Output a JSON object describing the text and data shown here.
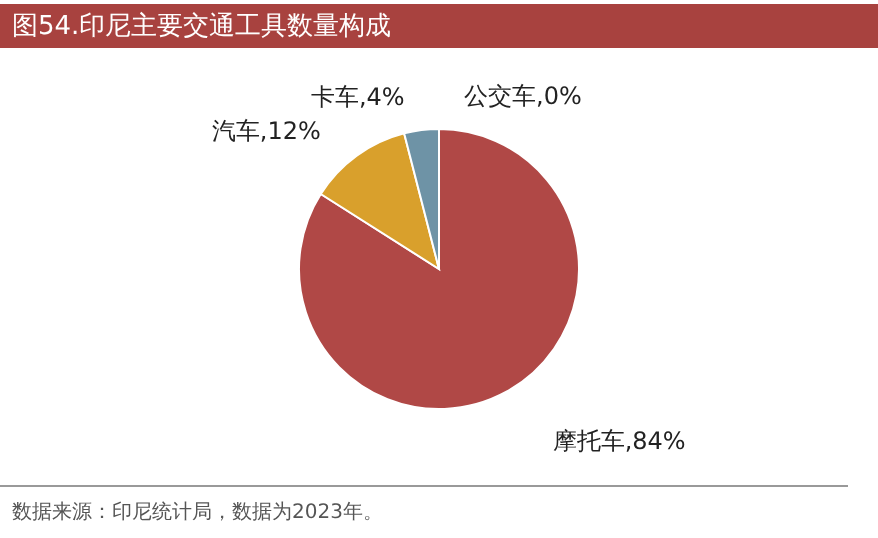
{
  "chart_data": {
    "type": "pie",
    "title": "图54.印尼主要交通工具数量构成",
    "categories": [
      "摩托车",
      "汽车",
      "卡车",
      "公交车"
    ],
    "values": [
      84,
      12,
      4,
      0
    ],
    "colors": [
      "#b04846",
      "#d9a02c",
      "#6e93a6",
      "#8aa8c0"
    ],
    "value_labels": [
      ",84%",
      ",12%",
      ",4%",
      ",0%"
    ],
    "annotations": [
      "数据来源：印尼统计局，数据为2023年。"
    ]
  }
}
